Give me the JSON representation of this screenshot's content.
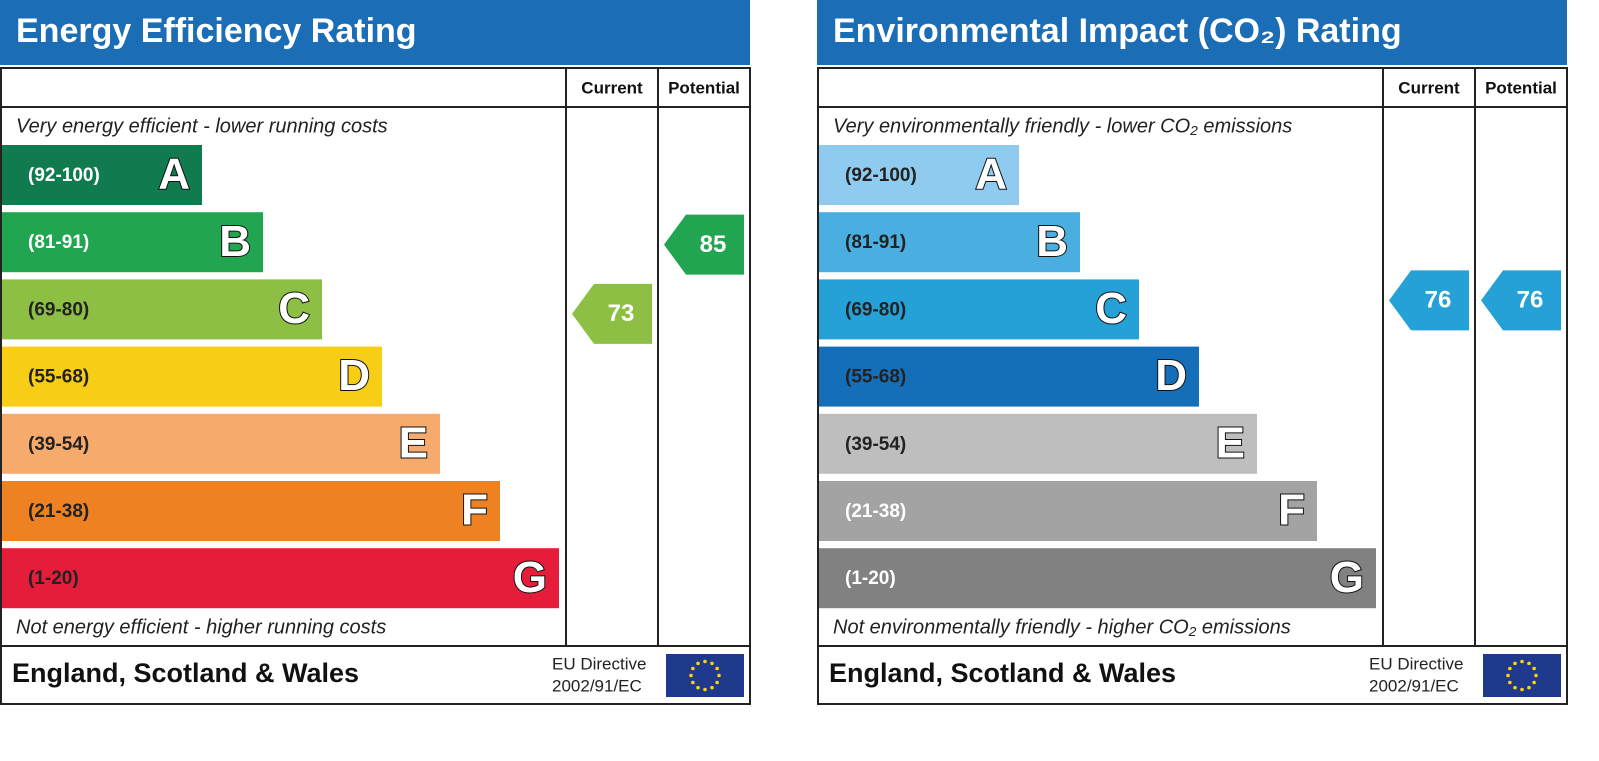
{
  "panels": [
    {
      "title": "Energy Efficiency Rating",
      "columns": [
        "Current",
        "Potential"
      ],
      "top_note": "Very energy efficient - lower running costs",
      "bottom_note": "Not energy efficient - higher running costs",
      "bands": [
        {
          "range": "(92-100)",
          "letter": "A",
          "color": "#0f7b4f",
          "text_color": "#ffffff"
        },
        {
          "range": "(81-91)",
          "letter": "B",
          "color": "#22a550",
          "text_color": "#ffffff"
        },
        {
          "range": "(69-80)",
          "letter": "C",
          "color": "#8cbf44",
          "text_color": "#222222"
        },
        {
          "range": "(55-68)",
          "letter": "D",
          "color": "#f8cd16",
          "text_color": "#222222"
        },
        {
          "range": "(39-54)",
          "letter": "E",
          "color": "#f6ab6d",
          "text_color": "#222222"
        },
        {
          "range": "(21-38)",
          "letter": "F",
          "color": "#ee8222",
          "text_color": "#222222"
        },
        {
          "range": "(1-20)",
          "letter": "G",
          "color": "#e51d3a",
          "text_color": "#222222"
        }
      ],
      "current": 73,
      "potential": 85,
      "footer": {
        "region": "England, Scotland & Wales",
        "directive": [
          "EU Directive",
          "2002/91/EC"
        ]
      }
    },
    {
      "title": "Environmental Impact (CO₂) Rating",
      "columns": [
        "Current",
        "Potential"
      ],
      "top_note": "Very environmentally friendly - lower CO₂ emissions",
      "bottom_note": "Not environmentally friendly - higher CO₂ emissions",
      "bands": [
        {
          "range": "(92-100)",
          "letter": "A",
          "color": "#8fcbee",
          "text_color": "#222222"
        },
        {
          "range": "(81-91)",
          "letter": "B",
          "color": "#4aaee0",
          "text_color": "#222222"
        },
        {
          "range": "(69-80)",
          "letter": "C",
          "color": "#26a1d7",
          "text_color": "#222222"
        },
        {
          "range": "(55-68)",
          "letter": "D",
          "color": "#146fb8",
          "text_color": "#222222"
        },
        {
          "range": "(39-54)",
          "letter": "E",
          "color": "#bebebe",
          "text_color": "#222222"
        },
        {
          "range": "(21-38)",
          "letter": "F",
          "color": "#a3a3a3",
          "text_color": "#ffffff"
        },
        {
          "range": "(1-20)",
          "letter": "G",
          "color": "#818181",
          "text_color": "#ffffff"
        }
      ],
      "current": 76,
      "potential": 76,
      "footer": {
        "region": "England, Scotland & Wales",
        "directive": [
          "EU Directive",
          "2002/91/EC"
        ]
      }
    }
  ]
}
